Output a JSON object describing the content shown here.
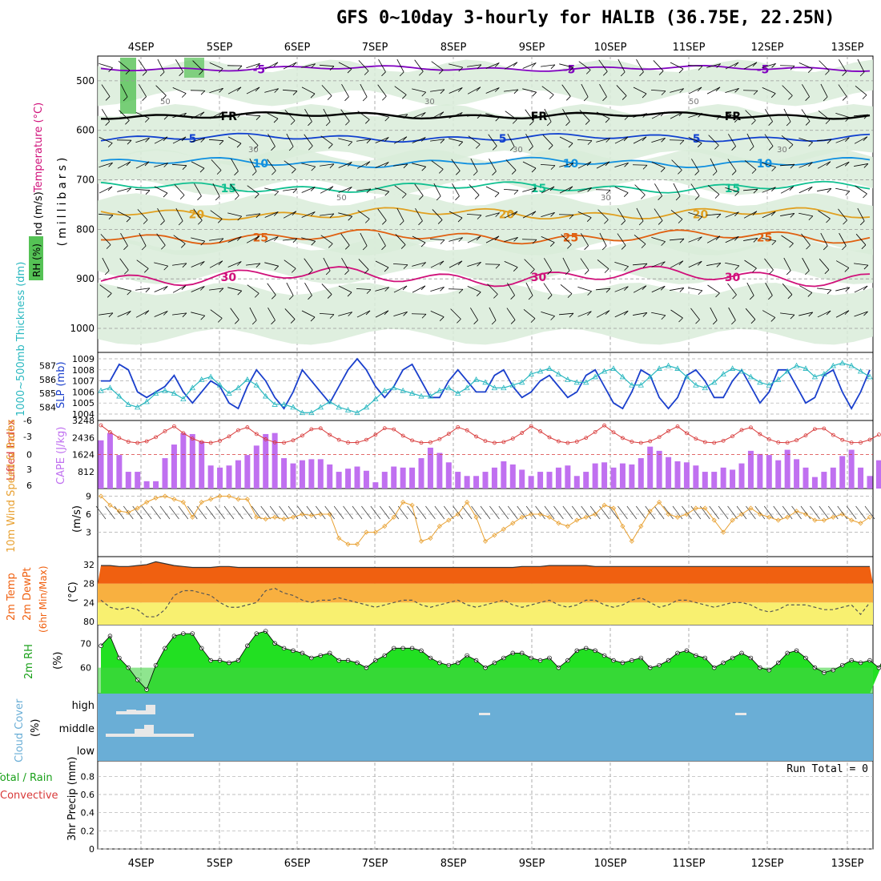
{
  "title": "GFS 0~10day 3-hourly for HALIB (36.75E, 22.25N)",
  "colors": {
    "rh_shade": "#d9ecd9",
    "rh_dark": "#a5c9a5",
    "rh_green": "#55c255",
    "temp_m5": "#8000c0",
    "temp_fr": "#000000",
    "temp_5": "#1040d0",
    "temp_10": "#1090e0",
    "temp_15": "#10c090",
    "temp_20": "#e0a020",
    "temp_25": "#e06010",
    "temp_30": "#d0107a",
    "slp": "#1a3fcc",
    "thick": "#2ab8c0",
    "lifted": "#d83a3a",
    "cape": "#c070f0",
    "wind": "#e8a030",
    "t2m_hot": "#f06010",
    "t2m_mid": "#f8b040",
    "t2m_low": "#f8f070",
    "rh2m": "#22e022",
    "rh2m_dark": "#44d444",
    "cloud": "#6aaed6",
    "cloud_box": "#e8e8e8"
  },
  "chart_data": [
    {
      "type": "contour-profile",
      "panel": "upper-air",
      "ylabel": "(millibars)",
      "side_labels": [
        "Wind (m/s)",
        "Temperature (°C)",
        "RH (%)"
      ],
      "x_dates": [
        "4SEP",
        "5SEP",
        "6SEP",
        "7SEP",
        "8SEP",
        "9SEP",
        "10SEP",
        "11SEP",
        "12SEP",
        "13SEP"
      ],
      "y_ticks": [
        500,
        600,
        700,
        800,
        900,
        1000
      ],
      "ylim": [
        450,
        1000
      ],
      "temperature_isotherms": [
        {
          "label": "-5",
          "pressure": 475
        },
        {
          "label": "FR",
          "pressure": 570
        },
        {
          "label": "5",
          "pressure": 615
        },
        {
          "label": "10",
          "pressure": 665
        },
        {
          "label": "15",
          "pressure": 715
        },
        {
          "label": "20",
          "pressure": 768
        },
        {
          "label": "25",
          "pressure": 815
        },
        {
          "label": "30",
          "pressure": 895
        }
      ],
      "rh_labels": [
        "50",
        "30",
        "50",
        "30",
        "30",
        "30",
        "50",
        "30"
      ]
    },
    {
      "type": "line",
      "panel": "slp-thickness",
      "series": [
        {
          "name": "SLP (mb)",
          "axis": "right",
          "values": [
            1007,
            1007,
            1008.5,
            1008,
            1006,
            1005.5,
            1006,
            1006.5,
            1007.5,
            1006,
            1005,
            1006,
            1007,
            1006.5,
            1005,
            1004.5,
            1006.5,
            1008,
            1007,
            1005.5,
            1004.5,
            1006,
            1008,
            1007,
            1006,
            1005,
            1006.5,
            1008,
            1009,
            1008,
            1006.5,
            1005.5,
            1006.5,
            1008,
            1008.5,
            1007,
            1005.5,
            1005.5,
            1007,
            1008,
            1007,
            1006,
            1006,
            1007.5,
            1008,
            1006.5,
            1005.5,
            1006,
            1007,
            1007.5,
            1006.5,
            1005.5,
            1006,
            1007.5,
            1008,
            1006.5,
            1005,
            1004.5,
            1006,
            1008,
            1007.5,
            1005.5,
            1004.5,
            1005.5,
            1007.5,
            1008,
            1007,
            1005.5,
            1005.5,
            1007,
            1008,
            1006.5,
            1005,
            1006,
            1008,
            1008,
            1006.5,
            1005,
            1005.5,
            1007.5,
            1008,
            1006,
            1004.5,
            1006,
            1008
          ]
        },
        {
          "name": "1000-500mb thickness (dm)",
          "axis": "left",
          "values": [
            585.2,
            585.4,
            584.8,
            584.2,
            584,
            584.4,
            585,
            585.2,
            585,
            584.6,
            585.4,
            586,
            586.2,
            585.6,
            585,
            585.4,
            586,
            585.6,
            584.8,
            584.2,
            584.2,
            584,
            583.6,
            583.6,
            584,
            584.4,
            584,
            583.8,
            583.6,
            584,
            584.6,
            585.2,
            585.4,
            585.2,
            585,
            584.8,
            584.8,
            585.2,
            585.4,
            585,
            585.4,
            586,
            585.8,
            585.4,
            585.4,
            585.6,
            585.8,
            586.4,
            586.6,
            586.8,
            586.4,
            586,
            585.8,
            585.8,
            586.2,
            586.6,
            586.8,
            586.2,
            585.6,
            585.6,
            586.2,
            586.8,
            587,
            586.8,
            586.2,
            585.6,
            585.4,
            585.8,
            586.4,
            586.8,
            586.6,
            586.2,
            585.8,
            585.6,
            586,
            586.6,
            587,
            586.8,
            586.2,
            586.4,
            587,
            587.2,
            587,
            586.6,
            586.2
          ]
        }
      ],
      "left_ticks": [
        584,
        585,
        586,
        587
      ],
      "right_ticks": [
        1004,
        1005,
        1006,
        1007,
        1008,
        1009
      ],
      "left_label": "1000~500mb Thickness (dm)",
      "right_label": "SLP (mb)"
    },
    {
      "type": "bar+line",
      "panel": "cape-lifted",
      "cape_values": [
        2300,
        2650,
        1600,
        800,
        800,
        350,
        350,
        1450,
        2100,
        2650,
        2600,
        2250,
        1100,
        1000,
        1100,
        1350,
        1600,
        2050,
        2600,
        2650,
        1450,
        1200,
        1350,
        1400,
        1400,
        1150,
        800,
        950,
        1050,
        850,
        300,
        800,
        1050,
        1000,
        1000,
        1450,
        1950,
        1700,
        1250,
        800,
        600,
        600,
        800,
        1000,
        1300,
        1150,
        900,
        600,
        800,
        800,
        1000,
        1100,
        600,
        800,
        1200,
        1250,
        1000,
        1200,
        1150,
        1450,
        2000,
        1800,
        1500,
        1300,
        1250,
        1100,
        800,
        800,
        1000,
        900,
        1200,
        1800,
        1650,
        1600,
        1350,
        1850,
        1400,
        1000,
        550,
        800,
        1000,
        1550,
        1850,
        1000,
        600,
        1350
      ]
    },
    {
      "type": "line",
      "panel": "wind-10m",
      "ylabel": "(m/s)",
      "left_label": "10m Wind Speed & Barbs",
      "y_ticks": [
        3,
        6,
        9
      ],
      "values": [
        9,
        7.5,
        6.5,
        6.3,
        7,
        8,
        8.7,
        9,
        8.5,
        8,
        5.5,
        8,
        8.5,
        9,
        9,
        8.5,
        8.5,
        5.5,
        5.2,
        5.5,
        5.2,
        5.5,
        6,
        5.8,
        6,
        6,
        2,
        1,
        1,
        3,
        3,
        4,
        5.5,
        8,
        7.5,
        1.5,
        2,
        4,
        5,
        6,
        8,
        5.5,
        1.5,
        2.5,
        3.5,
        4.5,
        5.5,
        6,
        6,
        5.5,
        4.5,
        4,
        5,
        5.5,
        6,
        7.5,
        7,
        4,
        1.5,
        4,
        6.5,
        8,
        6,
        5.5,
        6,
        7,
        7,
        5,
        3,
        5,
        6,
        7,
        6,
        5.5,
        5,
        5.5,
        6.5,
        6,
        5,
        5,
        5.5,
        6,
        5,
        4.5,
        5.5
      ]
    },
    {
      "type": "line",
      "panel": "t2m",
      "ylabel": "(°C)",
      "left_label": "2m Temp 2m DewPt (6hr Min/Max)",
      "y_ticks": [
        20,
        24,
        28,
        32
      ],
      "temp_values": [
        31.8,
        31.8,
        31.6,
        31.6,
        31.8,
        32,
        32.6,
        32.2,
        31.8,
        31.6,
        31.4,
        31.4,
        31.4,
        31.6,
        31.6,
        31.4,
        31.4,
        31.4,
        31.4,
        31.4,
        31.4,
        31.4,
        31.4,
        31.4,
        31.4,
        31.4,
        31.4,
        31.4,
        31.4,
        31.4,
        31.4,
        31.4,
        31.4,
        31.4,
        31.4,
        31.4,
        31.4,
        31.4,
        31.4,
        31.4,
        31.4,
        31.4,
        31.4,
        31.4,
        31.4,
        31.4,
        31.6,
        31.6,
        31.6,
        31.8,
        31.8,
        31.8,
        31.8,
        31.8,
        31.6,
        31.6,
        31.6,
        31.6,
        31.6,
        31.6,
        31.6,
        31.6,
        31.6,
        31.6,
        31.6,
        31.6,
        31.6,
        31.6,
        31.6,
        31.6,
        31.6,
        31.6,
        31.6,
        31.6,
        31.6,
        31.6,
        31.6,
        31.6,
        31.6,
        31.6,
        31.6,
        31.6,
        31.6,
        31.6,
        31.6
      ],
      "dew_values": [
        24.5,
        23,
        22.5,
        23,
        22.5,
        21,
        21,
        22.5,
        25.5,
        26.5,
        26.5,
        26,
        25.5,
        24,
        23,
        23,
        23.5,
        24,
        26.5,
        27,
        26,
        25.5,
        24.5,
        24,
        24.5,
        24.5,
        25,
        24.5,
        24,
        23.5,
        23,
        23.5,
        24,
        24.5,
        24.5,
        23.5,
        23,
        23.5,
        24,
        24.5,
        23.5,
        23,
        23.5,
        24,
        24.5,
        23.5,
        23,
        23.5,
        24,
        24.5,
        23.5,
        23,
        23.5,
        24.5,
        24.5,
        23.5,
        23,
        23.5,
        24.5,
        25,
        24,
        23,
        23.5,
        24.5,
        24.5,
        24,
        23.5,
        23,
        23.5,
        24,
        24,
        23.5,
        22.5,
        22,
        22.5,
        23.5,
        23.5,
        23.5,
        23,
        22.5,
        22.5,
        23,
        23.5,
        21.5,
        24
      ]
    },
    {
      "type": "area",
      "panel": "rh2m",
      "ylabel": "(%)",
      "left_label": "2m RH",
      "y_ticks": [
        60,
        70
      ],
      "values": [
        69,
        73,
        64,
        60,
        55,
        51,
        61,
        68,
        73,
        74,
        74,
        68,
        63,
        63,
        62,
        63,
        69,
        74,
        75,
        70,
        68,
        67,
        66,
        64,
        65,
        66,
        63,
        63,
        62,
        60,
        63,
        65,
        68,
        68,
        68,
        67,
        64,
        62,
        61,
        62,
        65,
        63,
        60,
        62,
        64,
        66,
        66,
        64,
        63,
        64,
        60,
        63,
        67,
        68,
        67,
        65,
        63,
        62,
        63,
        64,
        60,
        61,
        63,
        66,
        67,
        65,
        64,
        60,
        62,
        64,
        66,
        64,
        60,
        59,
        62,
        66,
        67,
        64,
        60,
        58,
        59,
        61,
        63,
        62,
        63,
        60,
        67
      ]
    },
    {
      "type": "cloud",
      "panel": "cloud-cover",
      "ylabel": "(%)",
      "left_label": "Cloud Cover",
      "levels": [
        "high",
        "middle",
        "low"
      ]
    },
    {
      "type": "bar",
      "panel": "precip",
      "left_label": "Total / Rain Convective",
      "ylabel": "3hr Precip (mm)",
      "y_ticks": [
        0,
        0.2,
        0.4,
        0.6,
        0.8
      ],
      "run_total_label": "Run Total = 0",
      "values": []
    }
  ]
}
